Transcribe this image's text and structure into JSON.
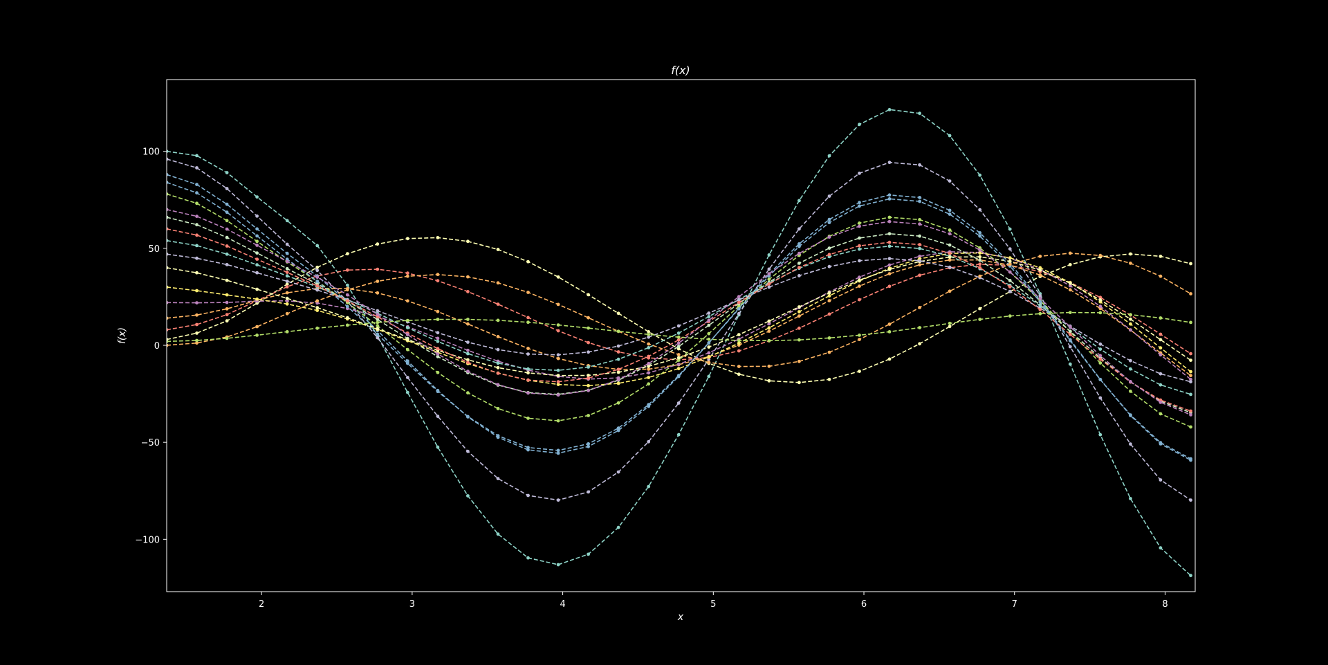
{
  "chart_data": {
    "type": "line",
    "title": "f(x)",
    "xlabel": "x",
    "ylabel": "f(x)",
    "xlim": [
      1.37,
      8.2
    ],
    "ylim": [
      -127,
      137
    ],
    "xticks": [
      2,
      3,
      4,
      5,
      6,
      7,
      8
    ],
    "xtick_labels": [
      "2",
      "3",
      "4",
      "5",
      "6",
      "7",
      "8"
    ],
    "yticks": [
      -100,
      -50,
      0,
      50,
      100
    ],
    "ytick_labels": [
      "−100",
      "−50",
      "0",
      "50",
      "100"
    ],
    "grid": false,
    "legend": "none",
    "line_style": "dashed",
    "markers": "dots",
    "background": "#000000",
    "axes_color": "#ffffff",
    "palette": [
      "#8dd3c7",
      "#feffb3",
      "#bfbbd9",
      "#fa8174",
      "#81b1d2",
      "#fdb462",
      "#b3de69",
      "#bc82bd",
      "#ccebc4",
      "#ffed6f"
    ],
    "x": [
      1.37,
      1.57,
      1.77,
      1.97,
      2.17,
      2.37,
      2.57,
      2.77,
      2.97,
      3.17,
      3.37,
      3.57,
      3.77,
      3.97,
      4.17,
      4.37,
      4.57,
      4.77,
      4.97,
      5.17,
      5.37,
      5.57,
      5.77,
      5.97,
      6.17,
      6.37,
      6.57,
      6.77,
      6.97,
      7.17,
      7.37,
      7.57,
      7.77,
      7.97,
      8.17
    ],
    "series": [
      {
        "values": [
          100.0,
          97.8,
          89.0,
          76.5,
          64.3,
          51.4,
          31.0,
          4.8,
          -24.3,
          -52.5,
          -77.6,
          -97.3,
          -109.6,
          -113.1,
          -107.7,
          -93.9,
          -72.8,
          -46.1,
          -16.0,
          15.7,
          46.6,
          74.6,
          97.7,
          113.9,
          121.5,
          119.6,
          108.1,
          87.7,
          59.9,
          26.6,
          -9.7,
          -46.1,
          -79.0,
          -104.4,
          -118.7
        ]
      },
      {
        "values": [
          3.0,
          6.3,
          12.6,
          21.7,
          31.5,
          40.2,
          47.2,
          52.2,
          55.0,
          55.5,
          53.6,
          49.4,
          43.1,
          35.2,
          26.1,
          16.5,
          7.0,
          -1.8,
          -9.3,
          -14.9,
          -18.3,
          -19.2,
          -17.6,
          -13.4,
          -7.1,
          0.8,
          9.7,
          18.9,
          27.7,
          35.5,
          41.6,
          45.6,
          47.1,
          45.9,
          42.1
        ]
      },
      {
        "values": [
          96.0,
          91.5,
          80.8,
          66.6,
          52.1,
          38.6,
          22.6,
          3.9,
          -16.6,
          -36.6,
          -54.7,
          -68.7,
          -77.4,
          -79.8,
          -75.6,
          -65.3,
          -49.7,
          -29.8,
          -7.2,
          16.3,
          39.3,
          60.0,
          76.9,
          88.7,
          94.3,
          93.0,
          84.7,
          69.9,
          49.7,
          25.5,
          -0.7,
          -27.1,
          -50.9,
          -69.4,
          -79.8
        ]
      },
      {
        "values": [
          8.0,
          10.7,
          15.8,
          23.0,
          30.2,
          35.8,
          38.8,
          39.2,
          37.2,
          33.3,
          27.7,
          21.2,
          14.3,
          7.5,
          1.4,
          -3.4,
          -6.5,
          -7.5,
          -6.3,
          -2.9,
          2.3,
          8.8,
          16.1,
          23.5,
          30.4,
          36.1,
          40.0,
          41.8,
          41.2,
          38.0,
          32.4,
          24.7,
          15.6,
          5.7,
          -4.3
        ]
      },
      {
        "values": [
          88.0,
          82.9,
          72.7,
          60.0,
          47.4,
          35.7,
          22.4,
          7.6,
          -8.1,
          -23.3,
          -36.9,
          -47.4,
          -53.9,
          -55.6,
          -52.2,
          -43.9,
          -31.5,
          -16.1,
          1.2,
          19.2,
          36.7,
          52.3,
          64.9,
          73.6,
          77.5,
          76.2,
          69.6,
          58.0,
          42.3,
          23.4,
          2.9,
          -17.6,
          -36.2,
          -50.8,
          -59.2
        ]
      },
      {
        "values": [
          14.0,
          15.6,
          18.8,
          23.2,
          27.1,
          29.3,
          29.2,
          27.0,
          22.9,
          17.4,
          11.0,
          4.5,
          -1.6,
          -6.8,
          -10.5,
          -12.4,
          -12.3,
          -10.0,
          -5.8,
          0.1,
          7.3,
          15.1,
          23.0,
          30.5,
          36.9,
          41.5,
          44.0,
          44.0,
          41.4,
          36.2,
          28.6,
          19.0,
          7.9,
          -3.9,
          -15.6
        ]
      },
      {
        "values": [
          78.0,
          73.2,
          64.3,
          53.6,
          43.0,
          33.0,
          22.0,
          10.1,
          -2.2,
          -14.0,
          -24.5,
          -32.6,
          -37.6,
          -38.9,
          -36.2,
          -29.7,
          -19.9,
          -7.7,
          6.0,
          20.2,
          34.0,
          46.4,
          56.2,
          63.0,
          66.0,
          64.8,
          59.4,
          50.2,
          37.8,
          23.0,
          7.0,
          -9.1,
          -23.7,
          -35.3,
          -42.1
        ]
      },
      {
        "values": [
          22.0,
          21.9,
          22.1,
          22.8,
          22.9,
          21.8,
          19.0,
          14.9,
          9.6,
          3.6,
          -2.6,
          -8.2,
          -12.8,
          -16.0,
          -17.4,
          -16.8,
          -14.2,
          -9.8,
          -3.9,
          3.2,
          11.1,
          19.4,
          27.5,
          35.1,
          41.4,
          45.9,
          48.2,
          47.9,
          44.9,
          39.1,
          30.7,
          20.1,
          8.0,
          -4.9,
          -17.6
        ]
      },
      {
        "values": [
          66.0,
          62.2,
          55.6,
          47.6,
          39.5,
          31.6,
          22.8,
          13.3,
          3.5,
          -5.8,
          -14.1,
          -20.5,
          -24.4,
          -25.3,
          -23.2,
          -18.0,
          -10.3,
          -0.6,
          10.3,
          21.6,
          32.5,
          42.3,
          50.1,
          55.3,
          57.5,
          56.3,
          51.7,
          43.9,
          33.4,
          20.8,
          7.2,
          -6.5,
          -18.9,
          -28.8,
          -34.7
        ]
      },
      {
        "values": [
          30.0,
          28.2,
          26.0,
          23.8,
          21.3,
          18.0,
          13.6,
          8.2,
          2.4,
          -3.6,
          -9.4,
          -14.3,
          -18.0,
          -20.2,
          -20.8,
          -19.6,
          -16.6,
          -12.0,
          -6.0,
          1.1,
          9.0,
          17.3,
          25.5,
          33.2,
          39.7,
          44.6,
          47.4,
          47.6,
          45.1,
          40.0,
          32.3,
          22.4,
          11.0,
          -1.3,
          -13.6
        ]
      },
      {
        "values": [
          54.0,
          51.4,
          47.0,
          41.5,
          35.8,
          30.1,
          23.6,
          16.5,
          9.1,
          2.0,
          -4.3,
          -9.2,
          -12.2,
          -12.9,
          -11.2,
          -7.2,
          -1.2,
          6.3,
          14.8,
          23.6,
          32.1,
          39.7,
          45.7,
          49.6,
          51.1,
          49.9,
          46.0,
          39.5,
          30.9,
          20.5,
          9.3,
          -2.0,
          -12.2,
          -20.4,
          -25.3
        ]
      },
      {
        "values": [
          40.0,
          37.4,
          33.5,
          28.9,
          24.2,
          19.4,
          14.2,
          8.6,
          2.9,
          -2.6,
          -7.5,
          -11.5,
          -14.2,
          -15.6,
          -15.5,
          -13.9,
          -10.8,
          -6.4,
          -0.9,
          5.5,
          12.5,
          19.8,
          27.0,
          33.6,
          39.1,
          43.2,
          45.5,
          45.6,
          43.3,
          38.8,
          32.0,
          23.4,
          13.5,
          2.9,
          -7.7
        ]
      },
      {
        "values": [
          47.0,
          44.9,
          41.6,
          37.4,
          33.0,
          28.5,
          23.4,
          17.8,
          12.1,
          6.5,
          1.6,
          -2.2,
          -4.5,
          -4.9,
          -3.5,
          -0.4,
          4.2,
          10.0,
          16.6,
          23.4,
          30.0,
          35.9,
          40.6,
          43.6,
          44.7,
          43.6,
          40.3,
          34.9,
          27.8,
          19.2,
          9.9,
          0.6,
          -7.9,
          -14.7,
          -18.8
        ]
      },
      {
        "values": [
          60.0,
          56.8,
          51.2,
          44.4,
          37.6,
          30.6,
          22.9,
          14.7,
          6.3,
          -1.7,
          -8.8,
          -14.4,
          -17.9,
          -18.8,
          -16.9,
          -12.4,
          -5.7,
          2.8,
          12.3,
          22.1,
          31.6,
          40.1,
          46.8,
          51.3,
          53.1,
          51.9,
          47.4,
          40.0,
          30.2,
          18.4,
          5.6,
          -7.2,
          -18.9,
          -28.2,
          -33.9
        ]
      },
      {
        "values": [
          84.0,
          78.6,
          68.6,
          56.4,
          44.4,
          33.0,
          20.0,
          5.7,
          -9.3,
          -23.8,
          -36.7,
          -46.6,
          -52.7,
          -54.2,
          -50.8,
          -42.7,
          -30.6,
          -15.6,
          1.3,
          18.8,
          35.8,
          51.0,
          63.3,
          71.8,
          75.5,
          74.2,
          67.6,
          56.3,
          40.9,
          22.4,
          2.4,
          -17.7,
          -35.9,
          -50.2,
          -58.5
        ]
      },
      {
        "values": [
          0.0,
          1.2,
          4.3,
          9.6,
          16.3,
          22.9,
          28.6,
          33.0,
          35.6,
          36.5,
          35.3,
          32.2,
          27.3,
          21.1,
          14.2,
          7.2,
          0.7,
          -4.8,
          -8.8,
          -10.9,
          -10.8,
          -8.3,
          -3.6,
          3.0,
          10.9,
          19.5,
          27.9,
          35.6,
          41.8,
          45.9,
          47.5,
          46.3,
          42.3,
          35.6,
          26.6
        ]
      },
      {
        "values": [
          2.0,
          2.5,
          3.6,
          5.2,
          7.0,
          8.8,
          10.4,
          11.8,
          12.8,
          13.4,
          13.4,
          12.9,
          11.9,
          10.5,
          8.9,
          7.2,
          5.6,
          4.2,
          3.1,
          2.5,
          2.4,
          2.8,
          3.8,
          5.2,
          7.0,
          9.1,
          11.3,
          13.4,
          15.1,
          16.3,
          16.9,
          16.8,
          15.8,
          14.1,
          11.8
        ]
      },
      {
        "values": [
          70.0,
          66.5,
          59.9,
          51.6,
          43.2,
          35.1,
          26.0,
          15.9,
          5.5,
          -4.5,
          -13.4,
          -20.3,
          -24.6,
          -25.6,
          -23.3,
          -17.7,
          -9.4,
          1.1,
          12.9,
          25.1,
          36.9,
          47.4,
          55.8,
          61.4,
          63.8,
          62.5,
          57.5,
          49.1,
          37.8,
          24.2,
          9.5,
          -5.3,
          -18.7,
          -29.4,
          -35.8
        ]
      }
    ]
  }
}
